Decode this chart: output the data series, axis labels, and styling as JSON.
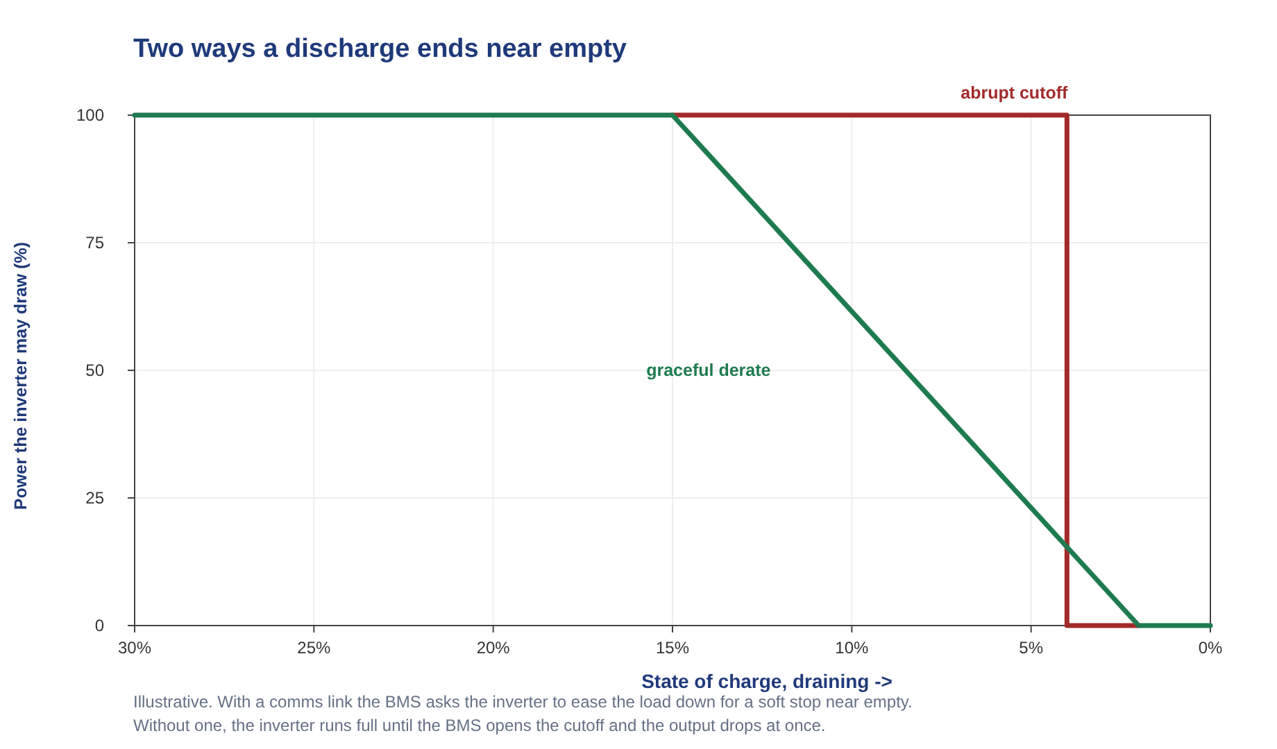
{
  "chart_data": {
    "type": "line",
    "title": "Two ways a discharge ends near empty",
    "xlabel": "State of charge, draining ->",
    "ylabel": "Power the inverter may draw (%)",
    "xlim": [
      30,
      0
    ],
    "xticks": [
      {
        "value": 30,
        "label": "30%"
      },
      {
        "value": 25,
        "label": "25%"
      },
      {
        "value": 20,
        "label": "20%"
      },
      {
        "value": 15,
        "label": "15%"
      },
      {
        "value": 10,
        "label": "10%"
      },
      {
        "value": 5,
        "label": "5%"
      },
      {
        "value": 0,
        "label": "0%"
      }
    ],
    "ylim": [
      0,
      100
    ],
    "yticks": [
      0,
      25,
      50,
      75,
      100
    ],
    "grid": true,
    "series": [
      {
        "name": "abrupt cutoff",
        "color": "#a32a2a",
        "x": [
          15,
          4,
          4,
          2
        ],
        "values": [
          100,
          100,
          0,
          0
        ]
      },
      {
        "name": "graceful derate",
        "color": "#1e7b4f",
        "x": [
          30,
          15,
          2,
          0
        ],
        "values": [
          100,
          100,
          0,
          0
        ]
      }
    ],
    "annotations": [
      "Illustrative. With a comms link the BMS asks the inverter to ease the load down for a soft stop near empty.",
      "Without one, the inverter runs full until the BMS opens the cutoff and the output drops at once."
    ]
  }
}
